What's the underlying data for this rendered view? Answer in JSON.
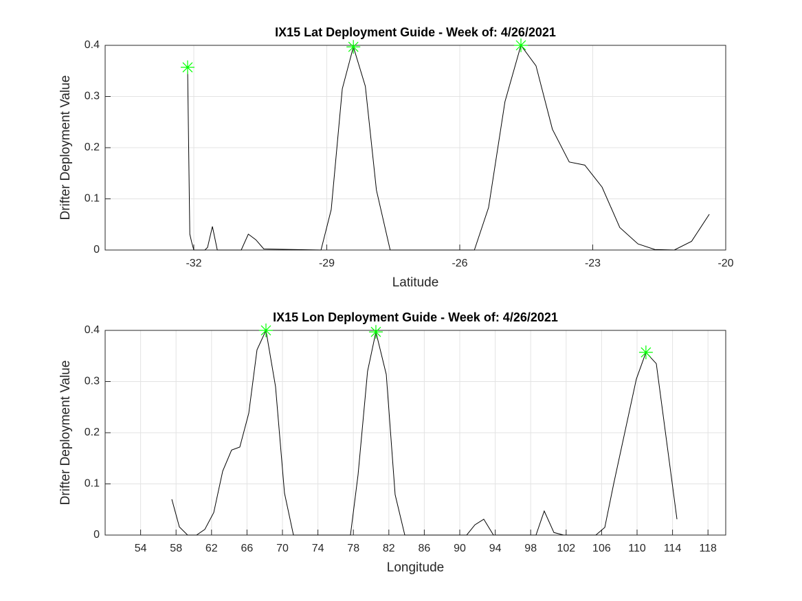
{
  "chart_data": [
    {
      "type": "line",
      "title": "IX15 Lat Deployment Guide - Week of: 4/26/2021",
      "x_label": "Latitude",
      "y_label": "Drifter Deployment Value",
      "xlim": [
        -34,
        -20
      ],
      "xticks": [
        -32,
        -29,
        -26,
        -23,
        -20
      ],
      "ylim": [
        0,
        0.4
      ],
      "yticks": [
        0,
        0.1,
        0.2,
        0.3,
        0.4
      ],
      "grid": true,
      "series": [
        {
          "color": "#000000",
          "marker": "none",
          "x": [
            -32.14,
            -32.09,
            -32.05,
            -32.0,
            -31.75,
            -31.69,
            -31.58,
            -31.47,
            -30.93,
            -30.77,
            -30.6,
            -30.42,
            -29.13,
            -28.9,
            -28.65,
            -28.4,
            -28.13,
            -27.88,
            -27.57,
            -25.67,
            -25.35,
            -24.98,
            -24.62,
            -24.28,
            -23.91,
            -23.53,
            -23.18,
            -22.79,
            -22.39,
            -21.98,
            -21.6,
            -21.16,
            -20.77,
            -20.37
          ],
          "values": [
            0.357,
            0.031,
            0.016,
            0,
            0,
            0.005,
            0.046,
            0,
            0,
            0.031,
            0.02,
            0.002,
            0,
            0.079,
            0.315,
            0.397,
            0.32,
            0.117,
            0,
            0,
            0.083,
            0.29,
            0.4,
            0.36,
            0.236,
            0.172,
            0.166,
            0.123,
            0.044,
            0.012,
            0.001,
            0,
            0.017,
            0.07
          ]
        },
        {
          "color": "#00ff00",
          "marker": "star",
          "x": [
            -32.14,
            -28.4,
            -24.62
          ],
          "values": [
            0.357,
            0.397,
            0.4
          ]
        }
      ]
    },
    {
      "type": "line",
      "title": "IX15 Lon Deployment Guide - Week of: 4/26/2021",
      "x_label": "Longitude",
      "y_label": "Drifter Deployment Value",
      "xlim": [
        50,
        120
      ],
      "xticks": [
        54,
        58,
        62,
        66,
        70,
        74,
        78,
        82,
        86,
        90,
        94,
        98,
        102,
        106,
        110,
        114,
        118
      ],
      "ylim": [
        0,
        0.4
      ],
      "yticks": [
        0,
        0.1,
        0.2,
        0.3,
        0.4
      ],
      "grid": true,
      "series": [
        {
          "color": "#000000",
          "marker": "none",
          "x": [
            57.52,
            58.37,
            59.3,
            60.31,
            61.24,
            62.25,
            63.26,
            64.26,
            65.19,
            66.2,
            67.13,
            68.14,
            69.22,
            70.23,
            71.24,
            77.67,
            78.53,
            79.6,
            80.54,
            81.71,
            82.71,
            83.8,
            90.78,
            91.71,
            92.71,
            93.8,
            98.6,
            99.53,
            100.62,
            101.71,
            105.35,
            106.36,
            107.36,
            109.92,
            111.0,
            112.17,
            114.5
          ],
          "values": [
            0.07,
            0.016,
            0,
            0,
            0.011,
            0.044,
            0.125,
            0.166,
            0.172,
            0.238,
            0.362,
            0.4,
            0.29,
            0.082,
            0,
            0,
            0.118,
            0.32,
            0.397,
            0.314,
            0.079,
            0,
            0,
            0.02,
            0.031,
            0,
            0,
            0.047,
            0.005,
            0,
            0,
            0.015,
            0.1,
            0.305,
            0.357,
            0.335,
            0.031
          ]
        },
        {
          "color": "#00ff00",
          "marker": "star",
          "x": [
            68.14,
            80.54,
            111.0
          ],
          "values": [
            0.4,
            0.397,
            0.357
          ]
        }
      ]
    }
  ]
}
